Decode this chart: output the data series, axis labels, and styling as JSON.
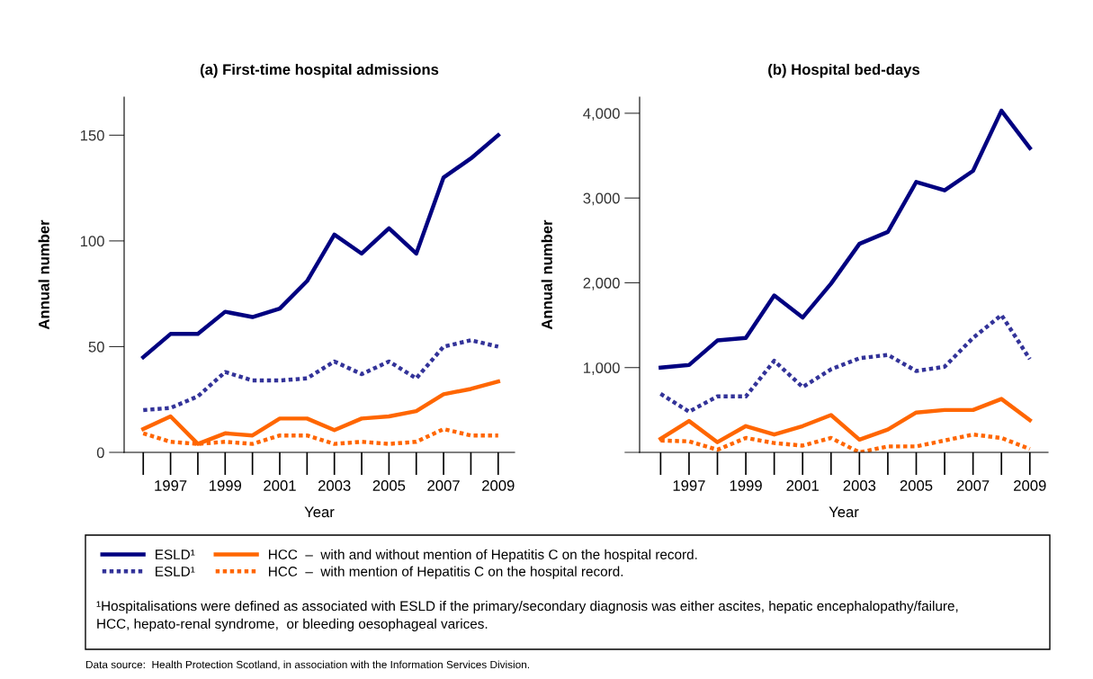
{
  "chart_data": [
    {
      "type": "line",
      "title": "(a) First-time hospital admissions",
      "xlabel": "Year",
      "ylabel": "Annual number",
      "x": [
        1996,
        1997,
        1998,
        1999,
        2000,
        2001,
        2002,
        2003,
        2004,
        2005,
        2006,
        2007,
        2008,
        2009
      ],
      "xlim": [
        1995.3,
        2009.6
      ],
      "xticks": [
        1997,
        1999,
        2001,
        2003,
        2005,
        2007,
        2009
      ],
      "ylim": [
        0,
        168
      ],
      "yticks": [
        0,
        50,
        100,
        150
      ],
      "grid": false,
      "legend": "bottom",
      "series": [
        {
          "name": "ESLD¹",
          "color": "#000080",
          "line_style": "solid",
          "values": [
            45,
            56,
            56,
            66.5,
            64,
            68,
            81,
            103,
            94,
            106,
            94,
            130,
            139,
            150
          ]
        },
        {
          "name": "ESLD¹",
          "color": "#333399",
          "line_style": "dotted",
          "values": [
            20,
            21,
            26.5,
            38,
            34,
            34,
            35,
            43,
            37,
            43,
            35,
            50,
            53,
            50
          ]
        },
        {
          "name": "HCC  –  with and without mention of Hepatitis C on the hospital record.",
          "color": "#ff6600",
          "line_style": "solid",
          "values": [
            11,
            17,
            4,
            9,
            8,
            16,
            16,
            10.5,
            16,
            17,
            19.5,
            27.5,
            30,
            33.5
          ]
        },
        {
          "name": "HCC  –  with mention of Hepatitis C on the hospital record.",
          "color": "#ff6600",
          "line_style": "dotted",
          "values": [
            9,
            5,
            4,
            5,
            4,
            8,
            8,
            4,
            5,
            4,
            5,
            11,
            8,
            8
          ]
        }
      ],
      "annotations": [
        "¹Hospitalisations were defined as associated with ESLD if the primary/secondary diagnosis was either ascites, hepatic encephalopathy/failure,\nHCC, hepato-renal syndrome,  or bleeding oesophageal varices.",
        "Data source:  Health Protection Scotland, in association with the Information Services Division."
      ]
    },
    {
      "type": "line",
      "title": "(b) Hospital bed-days",
      "xlabel": "Year",
      "ylabel": "Annual number",
      "x": [
        1996,
        1997,
        1998,
        1999,
        2000,
        2001,
        2002,
        2003,
        2004,
        2005,
        2006,
        2007,
        2008,
        2009
      ],
      "xlim": [
        1995.26,
        2009.64
      ],
      "xticks": [
        1997,
        1999,
        2001,
        2003,
        2005,
        2007,
        2009
      ],
      "ylim": [
        0,
        4190
      ],
      "yticks": [
        {
          "value": 0,
          "label": null
        },
        {
          "value": 1000,
          "label": "1,000"
        },
        {
          "value": 2000,
          "label": "2,000"
        },
        {
          "value": 3000,
          "label": "3,000"
        },
        {
          "value": 4000,
          "label": "4,000"
        }
      ],
      "grid": false,
      "series": [
        {
          "color": "#000080",
          "line_style": "solid",
          "values": [
            1000,
            1030,
            1320,
            1350,
            1850,
            1590,
            1990,
            2460,
            2600,
            3190,
            3090,
            3320,
            4030,
            3590
          ]
        },
        {
          "color": "#333399",
          "line_style": "dotted",
          "values": [
            690,
            480,
            660,
            660,
            1080,
            770,
            980,
            1110,
            1150,
            960,
            1010,
            1350,
            1620,
            1100
          ]
        },
        {
          "color": "#ff6600",
          "line_style": "solid",
          "values": [
            160,
            370,
            120,
            310,
            210,
            310,
            440,
            150,
            270,
            470,
            500,
            500,
            630,
            380
          ]
        },
        {
          "color": "#ff6600",
          "line_style": "dotted",
          "values": [
            140,
            130,
            30,
            170,
            110,
            80,
            170,
            0,
            70,
            70,
            140,
            210,
            170,
            40
          ]
        }
      ]
    }
  ]
}
